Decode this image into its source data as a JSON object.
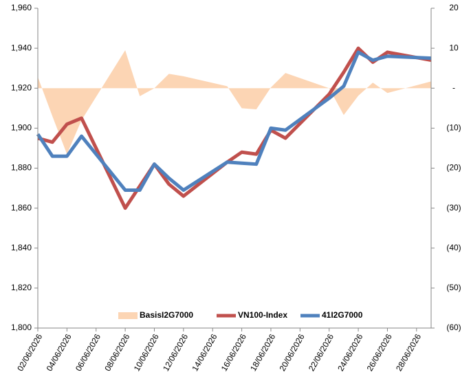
{
  "chart_data": {
    "type": "combo",
    "x": [
      "02/06/2026",
      "03/06/2026",
      "04/06/2026",
      "05/06/2026",
      "08/06/2026",
      "09/06/2026",
      "10/06/2026",
      "11/06/2026",
      "12/06/2026",
      "15/06/2026",
      "16/06/2026",
      "17/06/2026",
      "18/06/2026",
      "19/06/2026",
      "22/06/2026",
      "23/06/2026",
      "24/06/2026",
      "25/06/2026",
      "26/06/2026",
      "29/06/2026"
    ],
    "xlim": [
      "02/06/2026",
      "29/06/2026"
    ],
    "xticks": [
      "02/06/2026",
      "04/06/2026",
      "06/06/2026",
      "08/06/2026",
      "10/06/2026",
      "12/06/2026",
      "14/06/2026",
      "16/06/2026",
      "18/06/2026",
      "20/06/2026",
      "22/06/2026",
      "24/06/2026",
      "26/06/2026",
      "28/06/2026"
    ],
    "ylim": [
      1800,
      1960
    ],
    "yticks": [
      {
        "value": 1800,
        "label": "1,800"
      },
      {
        "value": 1820,
        "label": "1,820"
      },
      {
        "value": 1840,
        "label": "1,840"
      },
      {
        "value": 1860,
        "label": "1,860"
      },
      {
        "value": 1880,
        "label": "1,880"
      },
      {
        "value": 1900,
        "label": "1,900"
      },
      {
        "value": 1920,
        "label": "1,920"
      },
      {
        "value": 1940,
        "label": "1,940"
      },
      {
        "value": 1960,
        "label": "1,960"
      }
    ],
    "y2lim": [
      -60,
      20
    ],
    "y2ticks": [
      {
        "value": -60,
        "label": "(60)"
      },
      {
        "value": -50,
        "label": "(50)"
      },
      {
        "value": -40,
        "label": "(40)"
      },
      {
        "value": -30,
        "label": "(30)"
      },
      {
        "value": -20,
        "label": "(20)"
      },
      {
        "value": -10,
        "label": "(10)"
      },
      {
        "value": 0,
        "label": "-"
      },
      10,
      20
    ],
    "grid": false,
    "legend": "bottom",
    "series": [
      {
        "name": "BasisI2G7000",
        "kind": "area",
        "axis": "y2",
        "color": "#fcd5b4",
        "values": [
          2.8,
          -7,
          -16.5,
          -8,
          9.5,
          -2,
          0,
          3.6,
          3,
          0.5,
          -5,
          -5.3,
          0.2,
          3.8,
          0,
          -6.7,
          -1.9,
          1.4,
          -1.2,
          1.7
        ]
      },
      {
        "name": "VN100-Index",
        "kind": "line",
        "color": "#c0504d",
        "values": [
          1895,
          1893,
          1902,
          1905,
          1860,
          1871,
          1882,
          1872,
          1866,
          1883,
          1888,
          1887,
          1899,
          1895,
          1917,
          1928,
          1940,
          1933,
          1938,
          1934
        ]
      },
      {
        "name": "41I2G7000",
        "kind": "line",
        "color": "#4f81bd",
        "values": [
          1897,
          1886,
          1886,
          1896,
          1869,
          1869,
          1882,
          1875,
          1869,
          1883,
          1882.5,
          1882,
          1900,
          1899,
          1915,
          1921,
          1938,
          1934,
          1936,
          1935
        ]
      }
    ]
  }
}
